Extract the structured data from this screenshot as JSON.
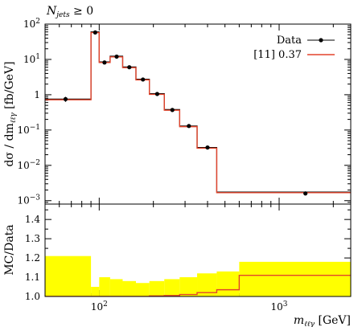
{
  "chart_data": [
    {
      "type": "line",
      "title": "N_jets ≥ 0",
      "title_parts": {
        "base": "N",
        "sub": "jets",
        "rest": " ≥ 0"
      },
      "xscale": "log",
      "yscale": "log",
      "xlim": [
        50,
        2500
      ],
      "ylim": [
        0.0008,
        100
      ],
      "ylabel": "dσ / dm_ℓℓγ [fb/GeV]",
      "ylabel_parts": {
        "pre": "dσ / dm",
        "sub": "ℓℓγ",
        "post": " [fb/GeV]"
      },
      "y_tick_labels": [
        {
          "v": 100,
          "base": "10",
          "exp": "2"
        },
        {
          "v": 10,
          "base": "10",
          "exp": "1"
        },
        {
          "v": 1,
          "base": "1",
          "exp": ""
        },
        {
          "v": 0.1,
          "base": "10",
          "exp": "−1"
        },
        {
          "v": 0.01,
          "base": "10",
          "exp": "−2"
        },
        {
          "v": 0.001,
          "base": "10",
          "exp": "−3"
        }
      ],
      "bin_edges": [
        50,
        90,
        100,
        115,
        135,
        160,
        190,
        230,
        280,
        350,
        450,
        600,
        2500
      ],
      "series": [
        {
          "name": "Data",
          "color": "#000000",
          "points": [
            {
              "x": 65,
              "y": 0.75,
              "err": 0.12
            },
            {
              "x": 95,
              "y": 58,
              "err": 4
            },
            {
              "x": 107,
              "y": 8.2,
              "err": 0.5
            },
            {
              "x": 125,
              "y": 12,
              "err": 0.6
            },
            {
              "x": 147,
              "y": 6.0,
              "err": 0.3
            },
            {
              "x": 175,
              "y": 2.7,
              "err": 0.15
            },
            {
              "x": 210,
              "y": 1.05,
              "err": 0.07
            },
            {
              "x": 255,
              "y": 0.37,
              "err": 0.03
            },
            {
              "x": 315,
              "y": 0.13,
              "err": 0.012
            },
            {
              "x": 400,
              "y": 0.032,
              "err": 0.003
            },
            {
              "x": 1400,
              "y": 0.0016,
              "err": 0.00018
            }
          ]
        },
        {
          "name": "[11] 0.37",
          "color": "#e3442b",
          "values": [
            0.75,
            60,
            8.5,
            12.3,
            6.1,
            2.75,
            1.07,
            0.38,
            0.13,
            0.032,
            0.00175,
            0.00175
          ]
        }
      ]
    },
    {
      "type": "area",
      "ylabel": "MC/Data",
      "xlabel": "m_ℓℓγ [GeV]",
      "xlabel_parts": {
        "pre": "m",
        "sub": "ℓℓγ",
        "post": " [GeV]"
      },
      "xscale": "log",
      "xlim": [
        50,
        2500
      ],
      "ylim": [
        1.0,
        1.48
      ],
      "y_ticks": [
        1.0,
        1.1,
        1.2,
        1.3,
        1.4
      ],
      "y_tick_labels": [
        "1.0",
        "1.1",
        "1.2",
        "1.3",
        "1.4"
      ],
      "x_tick_labels": [
        {
          "v": 100,
          "base": "10",
          "exp": "2"
        },
        {
          "v": 1000,
          "base": "10",
          "exp": "3"
        }
      ],
      "bin_edges": [
        50,
        90,
        100,
        115,
        135,
        160,
        190,
        230,
        280,
        350,
        450,
        600,
        2500
      ],
      "series": [
        {
          "name": "Data uncertainty",
          "color": "#ffff00",
          "upper": [
            1.21,
            1.05,
            1.1,
            1.09,
            1.08,
            1.07,
            1.08,
            1.09,
            1.1,
            1.12,
            1.13,
            1.18
          ],
          "lower": [
            1.0,
            1.0,
            1.0,
            1.0,
            1.0,
            1.0,
            1.0,
            1.0,
            1.0,
            1.0,
            1.0,
            1.0
          ]
        },
        {
          "name": "[11] 0.37",
          "color": "#e3442b",
          "values": [
            1.0,
            1.0,
            1.0,
            1.0,
            1.0,
            1.0,
            1.003,
            1.005,
            1.01,
            1.02,
            1.035,
            1.11
          ]
        }
      ]
    }
  ]
}
